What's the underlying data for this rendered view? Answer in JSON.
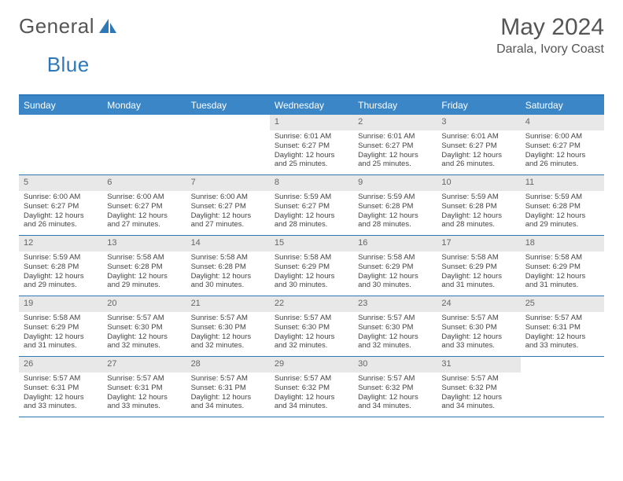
{
  "brand": {
    "word1": "General",
    "word2": "Blue",
    "logo_color": "#2f78b7"
  },
  "title": "May 2024",
  "location": "Darala, Ivory Coast",
  "colors": {
    "header_bg": "#3b86c7",
    "border": "#2f78b7",
    "daynum_bg": "#e8e8e8",
    "text": "#444"
  },
  "daysOfWeek": [
    "Sunday",
    "Monday",
    "Tuesday",
    "Wednesday",
    "Thursday",
    "Friday",
    "Saturday"
  ],
  "weeks": [
    [
      {
        "n": "",
        "sr": "",
        "ss": "",
        "dl": ""
      },
      {
        "n": "",
        "sr": "",
        "ss": "",
        "dl": ""
      },
      {
        "n": "",
        "sr": "",
        "ss": "",
        "dl": ""
      },
      {
        "n": "1",
        "sr": "6:01 AM",
        "ss": "6:27 PM",
        "dl": "12 hours and 25 minutes."
      },
      {
        "n": "2",
        "sr": "6:01 AM",
        "ss": "6:27 PM",
        "dl": "12 hours and 25 minutes."
      },
      {
        "n": "3",
        "sr": "6:01 AM",
        "ss": "6:27 PM",
        "dl": "12 hours and 26 minutes."
      },
      {
        "n": "4",
        "sr": "6:00 AM",
        "ss": "6:27 PM",
        "dl": "12 hours and 26 minutes."
      }
    ],
    [
      {
        "n": "5",
        "sr": "6:00 AM",
        "ss": "6:27 PM",
        "dl": "12 hours and 26 minutes."
      },
      {
        "n": "6",
        "sr": "6:00 AM",
        "ss": "6:27 PM",
        "dl": "12 hours and 27 minutes."
      },
      {
        "n": "7",
        "sr": "6:00 AM",
        "ss": "6:27 PM",
        "dl": "12 hours and 27 minutes."
      },
      {
        "n": "8",
        "sr": "5:59 AM",
        "ss": "6:27 PM",
        "dl": "12 hours and 28 minutes."
      },
      {
        "n": "9",
        "sr": "5:59 AM",
        "ss": "6:28 PM",
        "dl": "12 hours and 28 minutes."
      },
      {
        "n": "10",
        "sr": "5:59 AM",
        "ss": "6:28 PM",
        "dl": "12 hours and 28 minutes."
      },
      {
        "n": "11",
        "sr": "5:59 AM",
        "ss": "6:28 PM",
        "dl": "12 hours and 29 minutes."
      }
    ],
    [
      {
        "n": "12",
        "sr": "5:59 AM",
        "ss": "6:28 PM",
        "dl": "12 hours and 29 minutes."
      },
      {
        "n": "13",
        "sr": "5:58 AM",
        "ss": "6:28 PM",
        "dl": "12 hours and 29 minutes."
      },
      {
        "n": "14",
        "sr": "5:58 AM",
        "ss": "6:28 PM",
        "dl": "12 hours and 30 minutes."
      },
      {
        "n": "15",
        "sr": "5:58 AM",
        "ss": "6:29 PM",
        "dl": "12 hours and 30 minutes."
      },
      {
        "n": "16",
        "sr": "5:58 AM",
        "ss": "6:29 PM",
        "dl": "12 hours and 30 minutes."
      },
      {
        "n": "17",
        "sr": "5:58 AM",
        "ss": "6:29 PM",
        "dl": "12 hours and 31 minutes."
      },
      {
        "n": "18",
        "sr": "5:58 AM",
        "ss": "6:29 PM",
        "dl": "12 hours and 31 minutes."
      }
    ],
    [
      {
        "n": "19",
        "sr": "5:58 AM",
        "ss": "6:29 PM",
        "dl": "12 hours and 31 minutes."
      },
      {
        "n": "20",
        "sr": "5:57 AM",
        "ss": "6:30 PM",
        "dl": "12 hours and 32 minutes."
      },
      {
        "n": "21",
        "sr": "5:57 AM",
        "ss": "6:30 PM",
        "dl": "12 hours and 32 minutes."
      },
      {
        "n": "22",
        "sr": "5:57 AM",
        "ss": "6:30 PM",
        "dl": "12 hours and 32 minutes."
      },
      {
        "n": "23",
        "sr": "5:57 AM",
        "ss": "6:30 PM",
        "dl": "12 hours and 32 minutes."
      },
      {
        "n": "24",
        "sr": "5:57 AM",
        "ss": "6:30 PM",
        "dl": "12 hours and 33 minutes."
      },
      {
        "n": "25",
        "sr": "5:57 AM",
        "ss": "6:31 PM",
        "dl": "12 hours and 33 minutes."
      }
    ],
    [
      {
        "n": "26",
        "sr": "5:57 AM",
        "ss": "6:31 PM",
        "dl": "12 hours and 33 minutes."
      },
      {
        "n": "27",
        "sr": "5:57 AM",
        "ss": "6:31 PM",
        "dl": "12 hours and 33 minutes."
      },
      {
        "n": "28",
        "sr": "5:57 AM",
        "ss": "6:31 PM",
        "dl": "12 hours and 34 minutes."
      },
      {
        "n": "29",
        "sr": "5:57 AM",
        "ss": "6:32 PM",
        "dl": "12 hours and 34 minutes."
      },
      {
        "n": "30",
        "sr": "5:57 AM",
        "ss": "6:32 PM",
        "dl": "12 hours and 34 minutes."
      },
      {
        "n": "31",
        "sr": "5:57 AM",
        "ss": "6:32 PM",
        "dl": "12 hours and 34 minutes."
      },
      {
        "n": "",
        "sr": "",
        "ss": "",
        "dl": ""
      }
    ]
  ],
  "labels": {
    "sunrise": "Sunrise:",
    "sunset": "Sunset:",
    "daylight": "Daylight:"
  }
}
